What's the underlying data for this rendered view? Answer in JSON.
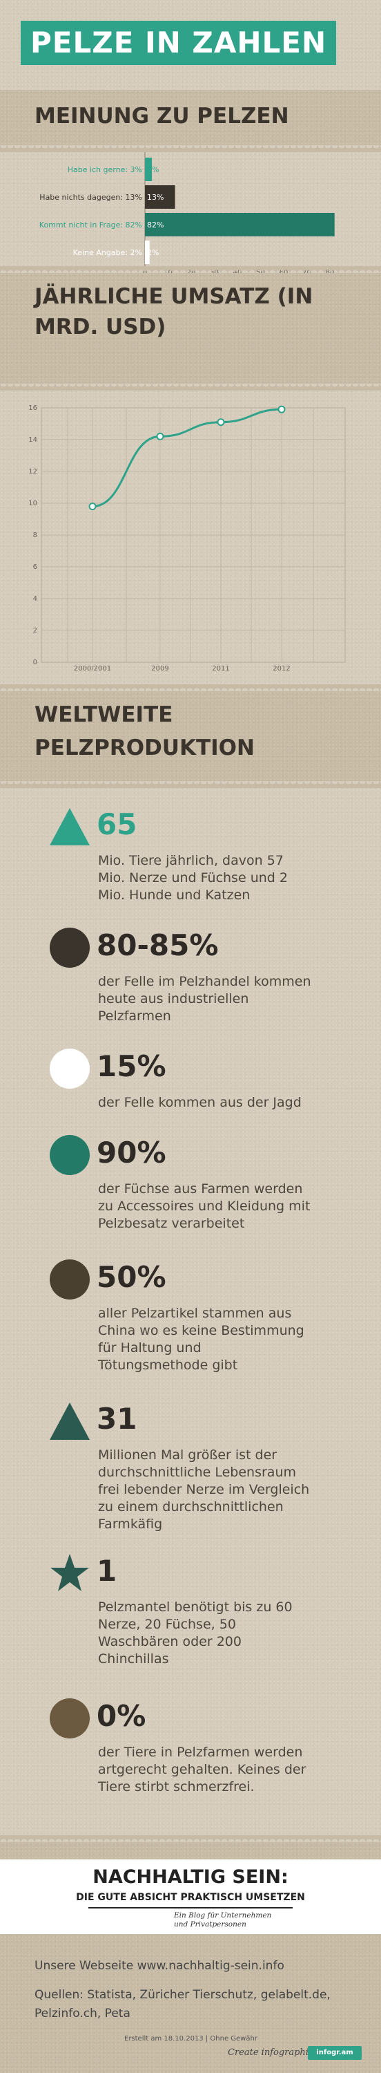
{
  "header": {
    "title": "PELZE IN ZAHLEN"
  },
  "opinion": {
    "section_title": "MEINUNG ZU PELZEN",
    "chart_data": {
      "type": "bar",
      "orientation": "horizontal",
      "categories": [
        "Habe ich gerne",
        "Habe nichts dagegen",
        "Kommt nicht in Frage",
        "Keine Angabe"
      ],
      "category_labels": [
        "Habe ich gerne: 3%",
        "Habe nichts dagegen: 13%",
        "Kommt nicht in Frage: 82%",
        "Keine Angabe: 2%"
      ],
      "value_labels": [
        "3%",
        "13%",
        "82%",
        "2%"
      ],
      "values": [
        3,
        13,
        82,
        2
      ],
      "colors": [
        "#2fa38a",
        "#3b342c",
        "#237a67",
        "#ffffff"
      ],
      "label_colors": [
        "#2fa38a",
        "#3b342c",
        "#2fa38a",
        "#ffffff"
      ],
      "xlim": [
        0,
        80
      ],
      "xticks": [
        "0",
        "10",
        "20",
        "30",
        "40",
        "50",
        "60",
        "70",
        "80"
      ]
    }
  },
  "revenue": {
    "section_title_line1": "JÄHRLICHE UMSATZ (IN",
    "section_title_line2": "MRD. USD)",
    "chart_data": {
      "type": "line",
      "categories": [
        "2000/2001",
        "2009",
        "2011",
        "2012"
      ],
      "values": [
        9.8,
        14.2,
        15.1,
        15.9
      ],
      "ylim": [
        0,
        16
      ],
      "yticks": [
        "0",
        "2",
        "4",
        "6",
        "8",
        "10",
        "12",
        "14",
        "16"
      ],
      "color": "#2fa38a",
      "grid": true
    }
  },
  "production": {
    "section_title_line1": "WELTWEITE",
    "section_title_line2": "PELZPRODUKTION",
    "stats": [
      {
        "icon": "triangle-icon",
        "color": "#2fa38a",
        "value": "65",
        "desc": [
          "Mio. Tiere jährlich, davon 57",
          "Mio. Nerze und Füchse und 2",
          "Mio. Hunde und Katzen"
        ]
      },
      {
        "icon": "circle-icon",
        "color": "#3b342c",
        "value": "80-85%",
        "desc": [
          "der Felle im Pelzhandel kommen",
          "heute aus industriellen",
          "Pelzfarmen"
        ]
      },
      {
        "icon": "circle-icon",
        "color": "#ffffff",
        "value": "15%",
        "desc": [
          "der Felle kommen aus der Jagd"
        ]
      },
      {
        "icon": "circle-icon",
        "color": "#237a67",
        "value": "90%",
        "desc": [
          "der Füchse aus Farmen werden",
          "zu Accessoires und Kleidung mit",
          "Pelzbesatz verarbeitet"
        ]
      },
      {
        "icon": "circle-icon",
        "color": "#4a4030",
        "value": "50%",
        "desc": [
          "aller Pelzartikel stammen aus",
          "China wo es keine Bestimmung",
          "für Haltung und",
          "Tötungsmethode gibt"
        ]
      },
      {
        "icon": "triangle-icon",
        "color": "#2a5a50",
        "value": "31",
        "desc": [
          "Millionen Mal größer ist der",
          "durchschnittliche Lebensraum",
          "frei lebender Nerze im Vergleich",
          "zu einem durchschnittlichen",
          "Farmkäfig"
        ]
      },
      {
        "icon": "star-icon",
        "color": "#2a5a50",
        "value": "1",
        "desc": [
          "Pelzmantel benötigt bis zu 60",
          "Nerze, 20 Füchse, 50",
          "Waschbären oder 200",
          "Chinchillas"
        ]
      },
      {
        "icon": "circle-icon",
        "color": "#6b5a40",
        "value": "0%",
        "desc": [
          "der Tiere in Pelzfarmen werden",
          "artgerecht gehalten. Keines der",
          "Tiere stirbt schmerzfrei."
        ]
      }
    ]
  },
  "footer": {
    "logo_title": "NACHHALTIG SEIN:",
    "logo_subtitle": "DIE GUTE ABSICHT PRAKTISCH UMSETZEN",
    "logo_tagline_line1": "Ein Blog für Unternehmen",
    "logo_tagline_line2": "und Privatpersonen",
    "website": "Unsere Webseite www.nachhaltig-sein.info",
    "sources_line1": "Quellen: Statista, Züricher Tierschutz, gelabelt.de,",
    "sources_line2": "Pelzinfo.ch, Peta",
    "created": "Erstellt am 18.10.2013 | Ohne Gewähr",
    "create_label": "Create infographics",
    "badge": "infogr.am"
  }
}
